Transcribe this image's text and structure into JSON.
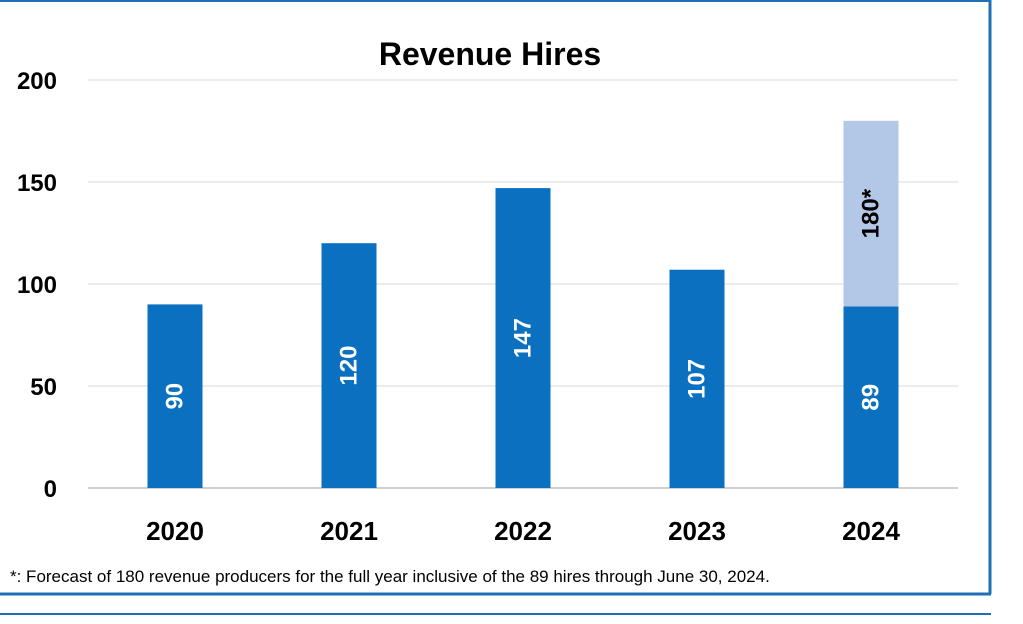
{
  "chart_data": {
    "type": "bar",
    "title": "Revenue Hires",
    "xlabel": "",
    "ylabel": "",
    "categories": [
      "2020",
      "2021",
      "2022",
      "2023",
      "2024"
    ],
    "series": [
      {
        "values": [
          90,
          120,
          147,
          107,
          89
        ],
        "labels": [
          "90",
          "120",
          "147",
          "107",
          "89"
        ],
        "color": "#0a70bf"
      },
      {
        "values": [
          0,
          0,
          0,
          0,
          91
        ],
        "labels": [
          "",
          "",
          "",
          "",
          "180*"
        ],
        "color": "#b3c7e6"
      }
    ],
    "stacked": true,
    "ylim": [
      0,
      200
    ],
    "yticks": [
      0,
      50,
      100,
      150,
      200
    ],
    "grid": true,
    "legend": "none",
    "footnote": "*: Forecast of 180 revenue producers for the full year inclusive of the 89 hires through June 30, 2024."
  },
  "colors": {
    "frame_border": "#1f6fb5",
    "gridline": "#d9d9d9",
    "axis_line": "#bfbfbf",
    "text": "#000000",
    "label_on_dark": "#ffffff"
  }
}
